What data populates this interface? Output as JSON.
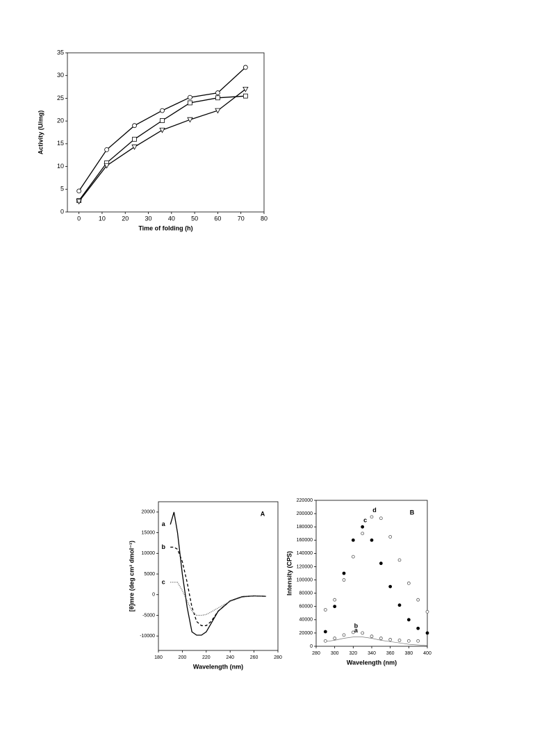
{
  "chart_data": [
    {
      "type": "line",
      "xlabel": "Time of folding (h)",
      "ylabel": "Activity (U/mg)",
      "x": [
        0,
        12,
        24,
        36,
        48,
        60,
        72
      ],
      "series": [
        {
          "color": "#000000",
          "marker": "circle",
          "values": [
            4.6,
            13.7,
            19.0,
            22.3,
            25.2,
            26.2,
            31.8
          ]
        },
        {
          "color": "#000000",
          "marker": "square",
          "values": [
            2.5,
            10.8,
            16.0,
            20.1,
            24.0,
            25.1,
            25.5
          ]
        },
        {
          "color": "#000000",
          "marker": "triangle",
          "values": [
            2.3,
            10.2,
            14.3,
            18.0,
            20.3,
            22.3,
            27.0
          ]
        }
      ],
      "xlim": [
        -5,
        80
      ],
      "xticks": [
        0,
        10,
        20,
        30,
        40,
        50,
        60,
        70,
        80
      ],
      "ylim": [
        0,
        35
      ],
      "yticks": [
        0,
        5,
        10,
        15,
        20,
        25,
        30,
        35
      ]
    },
    {
      "type": "line",
      "title": "A",
      "xlabel": "Wavelength (nm)",
      "ylabel": "[θ]mre (deg cm² dmol⁻¹)",
      "x": [
        190,
        193,
        196,
        200,
        204,
        208,
        212,
        216,
        220,
        224,
        230,
        240,
        250,
        260,
        270
      ],
      "series": [
        {
          "name": "a",
          "color": "#000000",
          "dash": "none",
          "values": [
            17000,
            20000,
            15000,
            5000,
            -3000,
            -9000,
            -9800,
            -9800,
            -9000,
            -7000,
            -4000,
            -1500,
            -500,
            -300,
            -400
          ]
        },
        {
          "name": "b",
          "color": "#000000",
          "dash": "4 3",
          "values": [
            11500,
            11500,
            11000,
            8000,
            3000,
            -3000,
            -6500,
            -7500,
            -7500,
            -6500,
            -4000,
            -1500,
            -500,
            -300,
            -400
          ]
        },
        {
          "name": "c",
          "color": "#555555",
          "dash": "1 1.5",
          "values": [
            3000,
            3000,
            3000,
            1000,
            -1500,
            -4000,
            -5000,
            -5000,
            -4800,
            -4200,
            -3200,
            -1600,
            -600,
            -300,
            -400
          ]
        }
      ],
      "xlim": [
        180,
        280
      ],
      "xticks": [
        180,
        200,
        220,
        240,
        260,
        280
      ],
      "ylim": [
        -13500,
        22500
      ],
      "yticks": [
        -10000,
        -5000,
        0,
        5000,
        10000,
        15000,
        20000
      ]
    },
    {
      "type": "line",
      "title": "B",
      "xlabel": "Wavelength (nm)",
      "ylabel": "Intensity (CPS)",
      "x": [
        290,
        300,
        310,
        320,
        330,
        340,
        350,
        360,
        370,
        380,
        390,
        400
      ],
      "series": [
        {
          "name": "a",
          "color": "#777777",
          "marker": "none",
          "values": [
            7000,
            9000,
            12000,
            14000,
            14000,
            12000,
            9000,
            7000,
            5000,
            3000,
            2000,
            1000
          ]
        },
        {
          "name": "b",
          "color": "#555555",
          "marker": "open",
          "values": [
            8000,
            12000,
            17000,
            21000,
            20000,
            15000,
            12000,
            10000,
            9000,
            8000,
            8000,
            null
          ]
        },
        {
          "name": "c",
          "color": "#000000",
          "marker": "filled",
          "values": [
            22000,
            60000,
            110000,
            160000,
            180000,
            160000,
            125000,
            90000,
            62000,
            40000,
            27000,
            20000
          ]
        },
        {
          "name": "d",
          "color": "#555555",
          "marker": "open",
          "values": [
            55000,
            70000,
            100000,
            135000,
            170000,
            195000,
            193000,
            165000,
            130000,
            95000,
            70000,
            52000
          ]
        }
      ],
      "xlim": [
        280,
        400
      ],
      "xticks": [
        280,
        300,
        320,
        340,
        360,
        380,
        400
      ],
      "ylim": [
        0,
        220000
      ],
      "yticks": [
        0,
        20000,
        40000,
        60000,
        80000,
        100000,
        120000,
        140000,
        160000,
        180000,
        200000,
        220000
      ]
    }
  ]
}
